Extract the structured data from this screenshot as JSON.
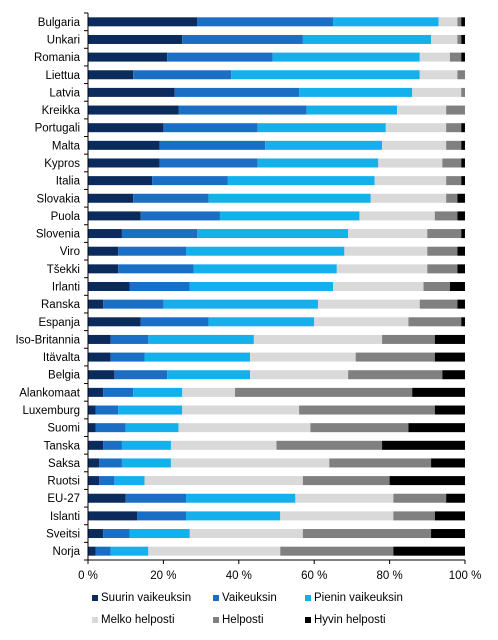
{
  "chart_data": {
    "type": "bar",
    "orientation": "horizontal",
    "stacked": "percent",
    "categories": [
      "Bulgaria",
      "Unkari",
      "Romania",
      "Liettua",
      "Latvia",
      "Kreikka",
      "Portugali",
      "Malta",
      "Kypros",
      "Italia",
      "Slovakia",
      "Puola",
      "Slovenia",
      "Viro",
      "Tšekki",
      "Irlanti",
      "Ranska",
      "Espanja",
      "Iso-Britannia",
      "Itävalta",
      "Belgia",
      "Alankomaat",
      "Luxemburg",
      "Suomi",
      "Tanska",
      "Saksa",
      "Ruotsi",
      "EU-27",
      "Islanti",
      "Sveitsi",
      "Norja"
    ],
    "series": [
      {
        "name": "Suurin vaikeuksin",
        "color": "#0a2b5c",
        "values": [
          29,
          25,
          21,
          12,
          23,
          24,
          20,
          19,
          19,
          17,
          12,
          14,
          9,
          8,
          8,
          11,
          4,
          14,
          6,
          6,
          7,
          4,
          2,
          2,
          4,
          3,
          3,
          10,
          13,
          4,
          2
        ]
      },
      {
        "name": "Vaikeuksin",
        "color": "#1a6ec4",
        "values": [
          36,
          32,
          28,
          26,
          33,
          34,
          25,
          28,
          26,
          20,
          20,
          21,
          20,
          18,
          20,
          16,
          16,
          18,
          10,
          9,
          14,
          8,
          6,
          8,
          5,
          6,
          4,
          16,
          13,
          7,
          4
        ]
      },
      {
        "name": "Pienin vaikeuksin",
        "color": "#14b0ec",
        "values": [
          28,
          34,
          39,
          50,
          30,
          24,
          34,
          31,
          32,
          39,
          43,
          37,
          40,
          42,
          38,
          38,
          41,
          28,
          28,
          28,
          22,
          13,
          17,
          14,
          13,
          13,
          8,
          29,
          25,
          16,
          10
        ]
      },
      {
        "name": "Melko helposti",
        "color": "#d9d9d9",
        "values": [
          5,
          7,
          8,
          10,
          13,
          13,
          16,
          17,
          17,
          19,
          20,
          20,
          21,
          22,
          24,
          24,
          27,
          25,
          34,
          28,
          26,
          14,
          31,
          35,
          28,
          42,
          42,
          26,
          30,
          30,
          35
        ]
      },
      {
        "name": "Helposti",
        "color": "#808080",
        "values": [
          1,
          1,
          3,
          2,
          1,
          5,
          4,
          4,
          5,
          4,
          3,
          6,
          9,
          8,
          8,
          7,
          10,
          14,
          14,
          21,
          25,
          47,
          36,
          26,
          28,
          27,
          23,
          14,
          11,
          34,
          30
        ]
      },
      {
        "name": "Hyvin helposti",
        "color": "#000000",
        "values": [
          1,
          1,
          1,
          0,
          0,
          0,
          1,
          1,
          1,
          1,
          2,
          2,
          1,
          2,
          2,
          4,
          2,
          1,
          8,
          8,
          6,
          14,
          8,
          15,
          22,
          9,
          20,
          5,
          8,
          9,
          19
        ]
      }
    ],
    "xlim": [
      0,
      100
    ],
    "xticks": [
      "0 %",
      "20 %",
      "40 %",
      "60 %",
      "80 %",
      "100 %"
    ],
    "grid": false,
    "legend_position": "bottom"
  }
}
